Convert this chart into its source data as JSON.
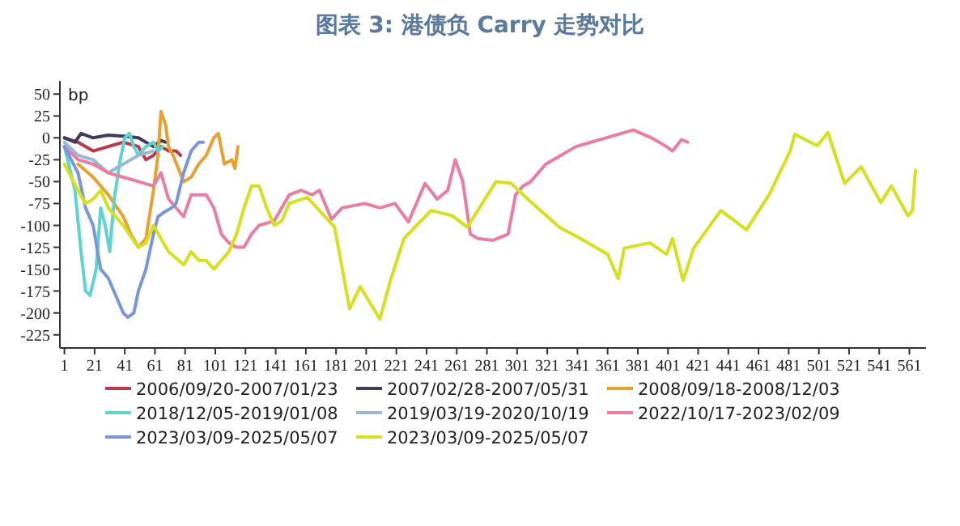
{
  "chart_data": {
    "type": "line",
    "title": "图表 3:  港债负 Carry 走势对比",
    "ylabel": "bp",
    "xlim": [
      -2,
      572
    ],
    "xticks": [
      1,
      21,
      41,
      61,
      81,
      101,
      121,
      141,
      161,
      181,
      201,
      221,
      241,
      261,
      281,
      301,
      321,
      341,
      361,
      381,
      401,
      421,
      441,
      461,
      481,
      501,
      521,
      541,
      561
    ],
    "ylim": [
      -240,
      65
    ],
    "yticks": [
      50,
      25,
      0,
      -25,
      -50,
      -75,
      -100,
      -125,
      -150,
      -175,
      -200,
      -225
    ],
    "grid": false,
    "legend": "bottom",
    "marker": "none",
    "line_style": "solid",
    "series": [
      {
        "name": "2006/09/20-2007/01/23",
        "color": "#b83a4b",
        "x": [
          1,
          10,
          20,
          30,
          40,
          50,
          55,
          60,
          65,
          70,
          75,
          78
        ],
        "values": [
          0,
          -5,
          -15,
          -10,
          -5,
          -10,
          -25,
          -20,
          -10,
          -15,
          -15,
          -20
        ]
      },
      {
        "name": "2007/02/28-2007/05/31",
        "color": "#3f3d5e",
        "x": [
          1,
          8,
          12,
          20,
          30,
          40,
          50,
          55,
          60,
          65,
          68
        ],
        "values": [
          0,
          -5,
          5,
          0,
          3,
          2,
          0,
          -5,
          -10,
          -3,
          -5
        ]
      },
      {
        "name": "2008/09/18-2008/12/03",
        "color": "#e8a030",
        "x": [
          10,
          20,
          30,
          40,
          45,
          50,
          55,
          60,
          63,
          65,
          68,
          70,
          73,
          80,
          85,
          90,
          95,
          100,
          103,
          107,
          112,
          114,
          116
        ],
        "values": [
          -30,
          -45,
          -65,
          -90,
          -110,
          -125,
          -115,
          -60,
          -20,
          30,
          15,
          -10,
          -20,
          -50,
          -45,
          -30,
          -20,
          0,
          5,
          -30,
          -25,
          -35,
          -10
        ]
      },
      {
        "name": "2018/12/05-2019/01/08",
        "color": "#5fd3d0",
        "x": [
          1,
          8,
          12,
          15,
          18,
          22,
          25,
          28,
          31,
          34,
          38,
          41,
          44,
          47,
          50,
          55,
          60,
          63,
          66
        ],
        "values": [
          -10,
          -60,
          -130,
          -175,
          -180,
          -150,
          -80,
          -100,
          -130,
          -70,
          -25,
          0,
          5,
          -10,
          -20,
          -10,
          -5,
          -15,
          -10
        ]
      },
      {
        "name": "2019/03/19-2020/10/19",
        "color": "#9ab8d8",
        "x": [
          1,
          10,
          20,
          30,
          40,
          50,
          60
        ],
        "values": [
          -5,
          -20,
          -25,
          -40,
          -30,
          -20,
          -15
        ]
      },
      {
        "name": "2022/10/17-2023/02/09",
        "color": "#e87fa0",
        "x": [
          1,
          10,
          20,
          30,
          40,
          50,
          60,
          65,
          70,
          80,
          85,
          95,
          100,
          105,
          110,
          115,
          120,
          125,
          130,
          140,
          150,
          158,
          165,
          170,
          178,
          185,
          200,
          210,
          220,
          229,
          240,
          248,
          255,
          260,
          265,
          270,
          275,
          285,
          295,
          300,
          305,
          310,
          320,
          330,
          340,
          350,
          360,
          370,
          378,
          390,
          400,
          404,
          410,
          414
        ],
        "values": [
          -10,
          -25,
          -30,
          -40,
          -45,
          -50,
          -55,
          -40,
          -70,
          -90,
          -65,
          -65,
          -80,
          -110,
          -120,
          -125,
          -125,
          -110,
          -100,
          -95,
          -65,
          -60,
          -65,
          -60,
          -93,
          -80,
          -75,
          -80,
          -75,
          -96,
          -52,
          -70,
          -60,
          -25,
          -50,
          -110,
          -115,
          -117,
          -110,
          -65,
          -55,
          -50,
          -30,
          -20,
          -10,
          -5,
          0,
          5,
          9,
          0,
          -10,
          -15,
          -2,
          -5
        ]
      },
      {
        "name": "2023/03/09-2025/05/07",
        "color": "#7b96d8",
        "x": [
          1,
          10,
          15,
          20,
          25,
          30,
          35,
          40,
          43,
          47,
          50,
          55,
          60,
          63,
          67,
          72,
          75,
          80,
          85,
          90,
          93
        ],
        "values": [
          -10,
          -40,
          -80,
          -100,
          -150,
          -160,
          -180,
          -200,
          -205,
          -200,
          -175,
          -150,
          -110,
          -90,
          -85,
          -80,
          -75,
          -40,
          -15,
          -5,
          -5
        ]
      },
      {
        "name": "2023/03/09-2025/05/07",
        "color": "#d6e020",
        "x": [
          1,
          10,
          15,
          20,
          25,
          30,
          40,
          50,
          55,
          60,
          70,
          80,
          85,
          90,
          95,
          100,
          105,
          110,
          115,
          120,
          125,
          130,
          135,
          140,
          145,
          150,
          162,
          180,
          190,
          197,
          210,
          217,
          226,
          244,
          258,
          268,
          287,
          297,
          308,
          329,
          343,
          361,
          368,
          372,
          389,
          400,
          404,
          411,
          418,
          436,
          453,
          468,
          482,
          485,
          500,
          507,
          518,
          529,
          542,
          549,
          560,
          563,
          565
        ],
        "values": [
          -30,
          -60,
          -75,
          -70,
          -60,
          -80,
          -100,
          -125,
          -120,
          -100,
          -130,
          -145,
          -130,
          -140,
          -140,
          -150,
          -140,
          -130,
          -110,
          -80,
          -55,
          -55,
          -80,
          -100,
          -95,
          -75,
          -68,
          -102,
          -195,
          -170,
          -207,
          -163,
          -115,
          -83,
          -89,
          -102,
          -50,
          -52,
          -70,
          -102,
          -115,
          -133,
          -161,
          -126,
          -120,
          -133,
          -115,
          -163,
          -126,
          -83,
          -105,
          -65,
          -15,
          4,
          -9,
          6,
          -52,
          -33,
          -74,
          -55,
          -89,
          -83,
          -37
        ]
      }
    ]
  }
}
